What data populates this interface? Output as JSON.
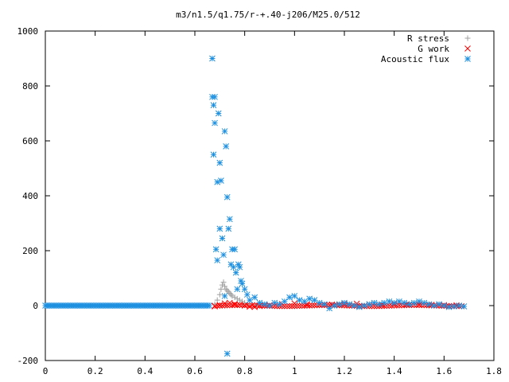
{
  "chart_data": {
    "type": "scatter",
    "title": "m3/n1.5/q1.75/r-+.40-j206/M25.0/512",
    "xlabel": "",
    "ylabel": "",
    "xlim": [
      0,
      1.8
    ],
    "ylim": [
      -200,
      1000
    ],
    "xticks": [
      "0",
      "0.2",
      "0.4",
      "0.6",
      "0.8",
      "1",
      "1.2",
      "1.4",
      "1.6",
      "1.8"
    ],
    "yticks": [
      "-200",
      "0",
      "200",
      "400",
      "600",
      "800",
      "1000"
    ],
    "grid": false,
    "legend_position": "top-right",
    "series": [
      {
        "name": "R stress",
        "marker": "plus",
        "color": "#a0a0a0",
        "x": [
          0.68,
          0.69,
          0.7,
          0.705,
          0.71,
          0.715,
          0.72,
          0.725,
          0.73,
          0.735,
          0.74,
          0.745,
          0.75,
          0.76,
          0.77,
          0.78,
          0.79,
          0.8,
          0.82,
          0.85,
          0.9
        ],
        "y": [
          5,
          20,
          40,
          60,
          75,
          85,
          70,
          60,
          55,
          50,
          45,
          40,
          35,
          30,
          25,
          20,
          15,
          10,
          5,
          2,
          0
        ]
      },
      {
        "name": "G work",
        "marker": "cross",
        "color": "#ff0000",
        "x": [
          0.68,
          0.7,
          0.72,
          0.74,
          0.76,
          0.78,
          0.8,
          0.82,
          0.84,
          0.86,
          0.88,
          0.9,
          0.95,
          1.0,
          1.05,
          1.1,
          1.15,
          1.2,
          1.25,
          1.3,
          1.35,
          1.4,
          1.45,
          1.5,
          1.55,
          1.6,
          1.65
        ],
        "y": [
          -3,
          2,
          8,
          10,
          6,
          3,
          0,
          -4,
          -5,
          -2,
          0,
          2,
          6,
          8,
          5,
          3,
          4,
          6,
          7,
          5,
          4,
          6,
          5,
          4,
          3,
          2,
          1
        ]
      },
      {
        "name": "Acoustic flux",
        "marker": "star",
        "color": "#1e90e0",
        "x": [
          0.67,
          0.67,
          0.675,
          0.675,
          0.68,
          0.68,
          0.685,
          0.69,
          0.69,
          0.695,
          0.7,
          0.7,
          0.705,
          0.71,
          0.715,
          0.72,
          0.72,
          0.725,
          0.73,
          0.73,
          0.735,
          0.74,
          0.745,
          0.75,
          0.755,
          0.76,
          0.765,
          0.77,
          0.775,
          0.78,
          0.785,
          0.79,
          0.8,
          0.81,
          0.82,
          0.84,
          0.86,
          0.88,
          0.9,
          0.92,
          0.94,
          0.96,
          0.98,
          1.0,
          1.02,
          1.04,
          1.06,
          1.08,
          1.1,
          1.12,
          1.14,
          1.16,
          1.18,
          1.2,
          1.22,
          1.24,
          1.26,
          1.28,
          1.3,
          1.32,
          1.34,
          1.36,
          1.38,
          1.4,
          1.42,
          1.44,
          1.46,
          1.48,
          1.5,
          1.52,
          1.54,
          1.56,
          1.58,
          1.6,
          1.62,
          1.64,
          1.66,
          1.68
        ],
        "y": [
          900,
          760,
          550,
          730,
          665,
          760,
          205,
          450,
          165,
          700,
          520,
          280,
          455,
          245,
          185,
          635,
          35,
          580,
          395,
          -175,
          280,
          315,
          150,
          205,
          140,
          205,
          120,
          60,
          150,
          140,
          90,
          80,
          60,
          40,
          20,
          30,
          10,
          5,
          0,
          10,
          5,
          15,
          30,
          35,
          20,
          15,
          25,
          20,
          10,
          5,
          -10,
          0,
          5,
          10,
          5,
          0,
          -5,
          0,
          5,
          10,
          5,
          10,
          15,
          10,
          15,
          10,
          5,
          10,
          15,
          10,
          5,
          0,
          5,
          0,
          -5,
          -3,
          0,
          -3
        ]
      }
    ]
  }
}
